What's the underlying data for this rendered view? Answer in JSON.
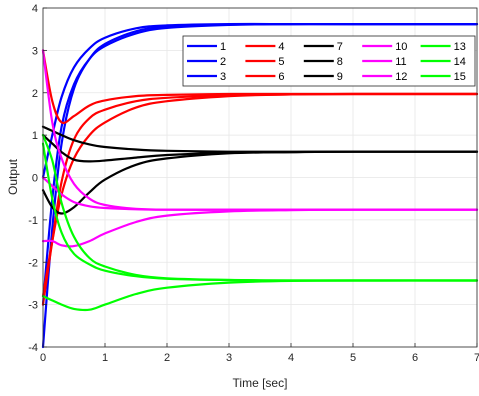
{
  "chart_data": {
    "type": "line",
    "xlabel": "Time [sec]",
    "ylabel": "Output",
    "xlim": [
      0,
      7
    ],
    "ylim": [
      -4,
      4
    ],
    "xticks": [
      "0",
      "1",
      "2",
      "3",
      "4",
      "5",
      "6",
      "7"
    ],
    "yticks": [
      "-4",
      "-3",
      "-2",
      "-1",
      "0",
      "1",
      "2",
      "3",
      "4"
    ],
    "grid": true,
    "legend_position": "top-right",
    "colors": {
      "1": "#0000ff",
      "2": "#ff0000",
      "3": "#000000",
      "4": "#ff00ff",
      "5": "#00ff00"
    },
    "series": [
      {
        "name": "1",
        "group": 1,
        "x": [
          0,
          0.15,
          0.3,
          0.5,
          0.75,
          1,
          1.5,
          2,
          3,
          4,
          5,
          7
        ],
        "y": [
          -4,
          -1.2,
          0.8,
          2.1,
          2.8,
          3.15,
          3.45,
          3.56,
          3.61,
          3.62,
          3.62,
          3.62
        ]
      },
      {
        "name": "2",
        "group": 1,
        "x": [
          0,
          0.15,
          0.3,
          0.5,
          0.75,
          1,
          1.5,
          2,
          3,
          4,
          5,
          7
        ],
        "y": [
          -3.0,
          -0.5,
          1.2,
          2.2,
          2.8,
          3.1,
          3.4,
          3.53,
          3.6,
          3.62,
          3.62,
          3.62
        ]
      },
      {
        "name": "3",
        "group": 1,
        "x": [
          0,
          0.15,
          0.3,
          0.5,
          0.75,
          1,
          1.5,
          2,
          3,
          4,
          5,
          7
        ],
        "y": [
          0.0,
          1.0,
          1.9,
          2.6,
          3.05,
          3.3,
          3.52,
          3.59,
          3.62,
          3.62,
          3.62,
          3.62
        ]
      },
      {
        "name": "4",
        "group": 2,
        "x": [
          0,
          0.15,
          0.3,
          0.5,
          0.75,
          1,
          1.5,
          2,
          3,
          4,
          5,
          7
        ],
        "y": [
          3.0,
          1.8,
          1.3,
          1.45,
          1.7,
          1.82,
          1.92,
          1.95,
          1.97,
          1.97,
          1.97,
          1.97
        ]
      },
      {
        "name": "5",
        "group": 2,
        "x": [
          0,
          0.15,
          0.3,
          0.5,
          0.75,
          1,
          1.5,
          2,
          3,
          4,
          5,
          7
        ],
        "y": [
          -3.0,
          -1.5,
          -0.1,
          0.9,
          1.4,
          1.6,
          1.8,
          1.88,
          1.94,
          1.96,
          1.97,
          1.97
        ]
      },
      {
        "name": "6",
        "group": 2,
        "x": [
          0,
          0.15,
          0.3,
          0.5,
          0.75,
          1,
          1.5,
          2,
          3,
          4,
          5,
          7
        ],
        "y": [
          -2.8,
          -1.5,
          -0.4,
          0.45,
          1.0,
          1.3,
          1.65,
          1.8,
          1.92,
          1.96,
          1.97,
          1.97
        ]
      },
      {
        "name": "7",
        "group": 3,
        "x": [
          0,
          0.15,
          0.3,
          0.5,
          0.75,
          1,
          1.5,
          2,
          3,
          4,
          5,
          7
        ],
        "y": [
          1.0,
          0.8,
          0.6,
          0.42,
          0.38,
          0.4,
          0.47,
          0.53,
          0.58,
          0.6,
          0.61,
          0.61
        ]
      },
      {
        "name": "8",
        "group": 3,
        "x": [
          0,
          0.15,
          0.3,
          0.5,
          0.75,
          1,
          1.5,
          2,
          3,
          4,
          5,
          7
        ],
        "y": [
          1.2,
          1.1,
          1.0,
          0.88,
          0.78,
          0.72,
          0.66,
          0.63,
          0.61,
          0.61,
          0.61,
          0.61
        ]
      },
      {
        "name": "9",
        "group": 3,
        "x": [
          0,
          0.15,
          0.3,
          0.5,
          0.75,
          1,
          1.5,
          2,
          3,
          4,
          5,
          7
        ],
        "y": [
          -0.3,
          -0.7,
          -0.85,
          -0.7,
          -0.35,
          -0.05,
          0.3,
          0.45,
          0.57,
          0.6,
          0.61,
          0.61
        ]
      },
      {
        "name": "10",
        "group": 4,
        "x": [
          0,
          0.15,
          0.3,
          0.5,
          0.75,
          1,
          1.5,
          2,
          3,
          4,
          5,
          7
        ],
        "y": [
          3.0,
          1.3,
          0.45,
          -0.15,
          -0.5,
          -0.65,
          -0.74,
          -0.76,
          -0.76,
          -0.76,
          -0.76,
          -0.76
        ]
      },
      {
        "name": "11",
        "group": 4,
        "x": [
          0,
          0.15,
          0.3,
          0.5,
          0.75,
          1,
          1.5,
          2,
          3,
          4,
          5,
          7
        ],
        "y": [
          0.0,
          -0.2,
          -0.4,
          -0.58,
          -0.68,
          -0.72,
          -0.75,
          -0.76,
          -0.76,
          -0.76,
          -0.76,
          -0.76
        ]
      },
      {
        "name": "12",
        "group": 4,
        "x": [
          0,
          0.15,
          0.3,
          0.5,
          0.75,
          1,
          1.5,
          2,
          3,
          4,
          5,
          7
        ],
        "y": [
          -1.5,
          -1.5,
          -1.6,
          -1.62,
          -1.5,
          -1.32,
          -1.05,
          -0.9,
          -0.8,
          -0.77,
          -0.76,
          -0.76
        ]
      },
      {
        "name": "13",
        "group": 5,
        "x": [
          0,
          0.15,
          0.3,
          0.5,
          0.75,
          1,
          1.5,
          2,
          3,
          4,
          5,
          7
        ],
        "y": [
          1.0,
          0.4,
          -0.6,
          -1.4,
          -1.9,
          -2.1,
          -2.3,
          -2.38,
          -2.42,
          -2.43,
          -2.43,
          -2.43
        ]
      },
      {
        "name": "14",
        "group": 5,
        "x": [
          0,
          0.15,
          0.3,
          0.5,
          0.75,
          1,
          1.5,
          2,
          3,
          4,
          5,
          7
        ],
        "y": [
          0.8,
          -0.5,
          -1.3,
          -1.8,
          -2.05,
          -2.2,
          -2.33,
          -2.39,
          -2.42,
          -2.43,
          -2.43,
          -2.43
        ]
      },
      {
        "name": "15",
        "group": 5,
        "x": [
          0,
          0.15,
          0.3,
          0.5,
          0.75,
          1,
          1.5,
          2,
          3,
          4,
          5,
          7
        ],
        "y": [
          -2.8,
          -2.9,
          -3.0,
          -3.1,
          -3.12,
          -3.0,
          -2.75,
          -2.6,
          -2.48,
          -2.44,
          -2.43,
          -2.43
        ]
      }
    ]
  }
}
